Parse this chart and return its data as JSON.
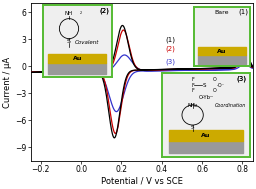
{
  "xlabel": "Potential / V vs SCE",
  "ylabel": "Current / μA",
  "xlim": [
    -0.25,
    0.85
  ],
  "ylim": [
    -10.5,
    7.0
  ],
  "yticks": [
    -9,
    -6,
    -3,
    0,
    3,
    6
  ],
  "xticks": [
    -0.2,
    0.0,
    0.2,
    0.4,
    0.6,
    0.8
  ],
  "colors": {
    "bare": "#000000",
    "covalent": "#cc0000",
    "coordination": "#3333cc"
  },
  "green_border": "#55bb33",
  "au_color": "#ccaa00",
  "au_gray": "#aaaaaa",
  "bg_color": "#e8e8e8"
}
